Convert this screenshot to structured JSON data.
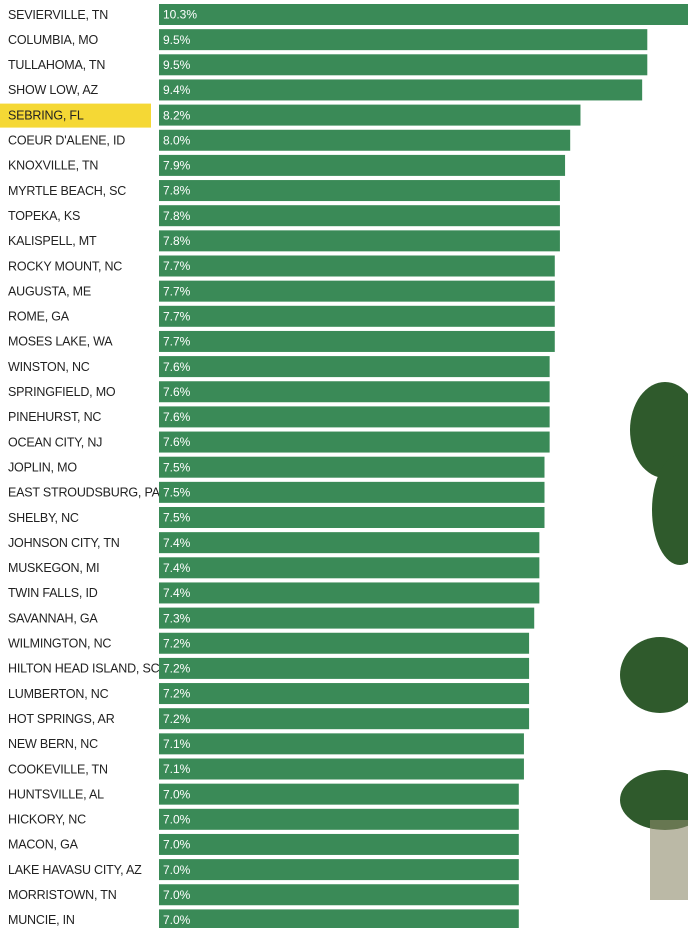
{
  "chart_data": {
    "type": "bar",
    "orientation": "horizontal",
    "categories": [
      "SEVIERVILLE, TN",
      "COLUMBIA, MO",
      "TULLAHOMA, TN",
      "SHOW LOW, AZ",
      "SEBRING, FL",
      "COEUR D'ALENE, ID",
      "KNOXVILLE, TN",
      "MYRTLE BEACH, SC",
      "TOPEKA, KS",
      "KALISPELL, MT",
      "ROCKY MOUNT, NC",
      "AUGUSTA, ME",
      "ROME, GA",
      "MOSES LAKE, WA",
      "WINSTON, NC",
      "SPRINGFIELD, MO",
      "PINEHURST, NC",
      "OCEAN CITY, NJ",
      "JOPLIN, MO",
      "EAST STROUDSBURG, PA",
      "SHELBY, NC",
      "JOHNSON CITY, TN",
      "MUSKEGON, MI",
      "TWIN FALLS, ID",
      "SAVANNAH, GA",
      "WILMINGTON, NC",
      "HILTON HEAD ISLAND, SC",
      "LUMBERTON, NC",
      "HOT SPRINGS, AR",
      "NEW BERN, NC",
      "COOKEVILLE, TN",
      "HUNTSVILLE, AL",
      "HICKORY, NC",
      "MACON, GA",
      "LAKE HAVASU CITY, AZ",
      "MORRISTOWN, TN",
      "MUNCIE, IN"
    ],
    "values": [
      10.3,
      9.5,
      9.5,
      9.4,
      8.2,
      8.0,
      7.9,
      7.8,
      7.8,
      7.8,
      7.7,
      7.7,
      7.7,
      7.7,
      7.6,
      7.6,
      7.6,
      7.6,
      7.5,
      7.5,
      7.5,
      7.4,
      7.4,
      7.4,
      7.3,
      7.2,
      7.2,
      7.2,
      7.2,
      7.1,
      7.1,
      7.0,
      7.0,
      7.0,
      7.0,
      7.0,
      7.0
    ],
    "value_labels": [
      "10.3%",
      "9.5%",
      "9.5%",
      "9.4%",
      "8.2%",
      "8.0%",
      "7.9%",
      "7.8%",
      "7.8%",
      "7.8%",
      "7.7%",
      "7.7%",
      "7.7%",
      "7.7%",
      "7.6%",
      "7.6%",
      "7.6%",
      "7.6%",
      "7.5%",
      "7.5%",
      "7.5%",
      "7.4%",
      "7.4%",
      "7.4%",
      "7.3%",
      "7.2%",
      "7.2%",
      "7.2%",
      "7.2%",
      "7.1%",
      "7.1%",
      "7.0%",
      "7.0%",
      "7.0%",
      "7.0%",
      "7.0%",
      "7.0%"
    ],
    "color": "#3a8a57",
    "highlight": "SEBRING, FL",
    "highlight_color": "#f5d835"
  }
}
